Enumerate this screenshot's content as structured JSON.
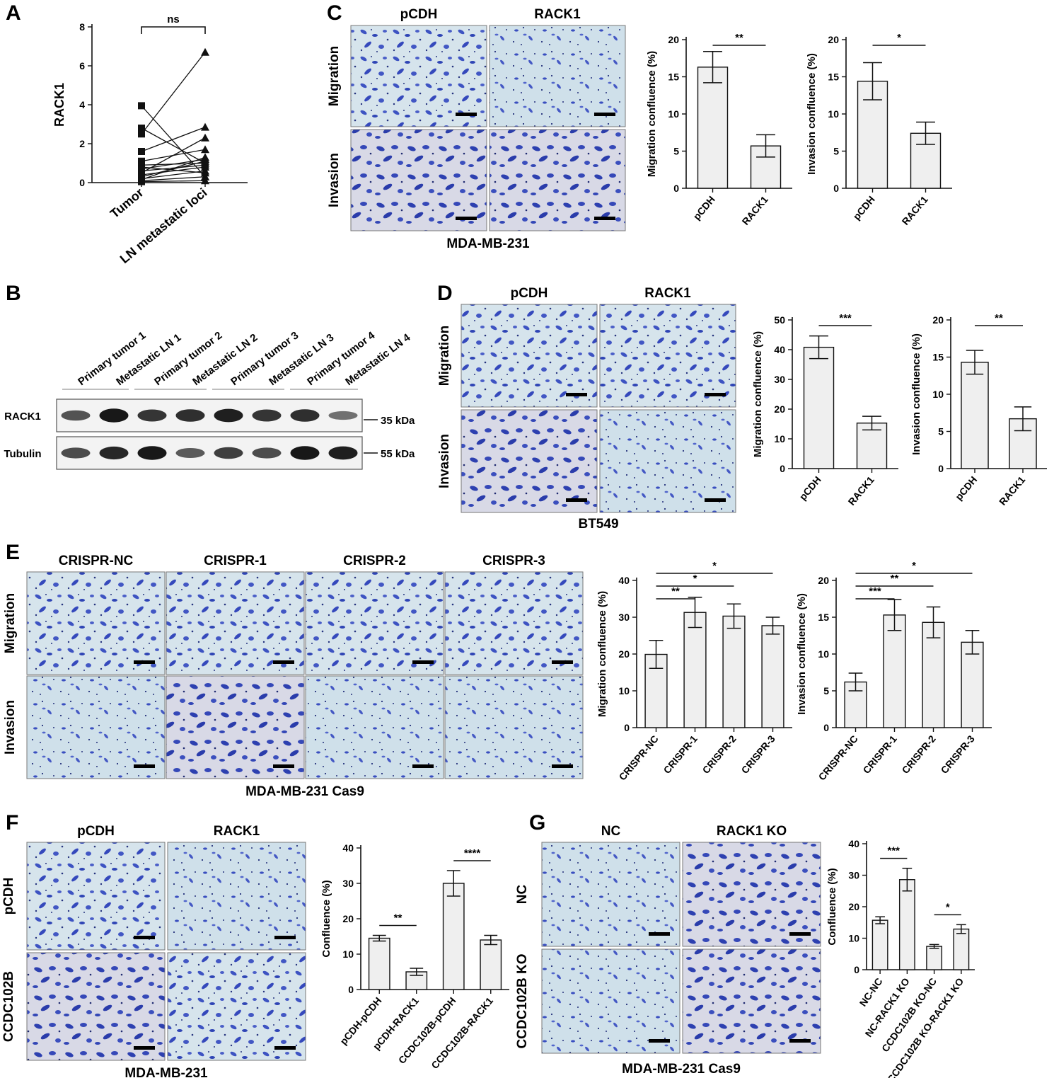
{
  "panel_letters": [
    "A",
    "B",
    "C",
    "D",
    "E",
    "F",
    "G"
  ],
  "panel_c": {
    "col_headers": [
      "pCDH",
      "RACK1"
    ],
    "row_headers": [
      "Migration",
      "Invasion"
    ],
    "caption": "MDA-MB-231"
  },
  "panel_d": {
    "col_headers": [
      "pCDH",
      "RACK1"
    ],
    "row_headers": [
      "Migration",
      "Invasion"
    ],
    "caption": "BT549"
  },
  "panel_e": {
    "col_headers": [
      "CRISPR-NC",
      "CRISPR-1",
      "CRISPR-2",
      "CRISPR-3"
    ],
    "row_headers": [
      "Migration",
      "Invasion"
    ],
    "caption": "MDA-MB-231 Cas9"
  },
  "panel_f": {
    "col_headers": [
      "pCDH",
      "RACK1"
    ],
    "row_headers": [
      "pCDH",
      "CCDC102B"
    ],
    "caption": "MDA-MB-231"
  },
  "panel_g": {
    "col_headers": [
      "NC",
      "RACK1 KO"
    ],
    "row_headers": [
      "NC",
      "CCDC102B KO"
    ],
    "caption": "MDA-MB-231 Cas9"
  },
  "western_blot": {
    "lanes": [
      "Primary tumor 1",
      "Metastatic LN 1",
      "Primary tumor 2",
      "Metastatic LN 2",
      "Primary tumor 3",
      "Metastatic LN 3",
      "Primary tumor 4",
      "Metastatic LN 4"
    ],
    "rows": [
      {
        "label": "RACK1",
        "marker": "35 kDa",
        "intensity": [
          0.55,
          0.95,
          0.75,
          0.8,
          0.9,
          0.75,
          0.8,
          0.35
        ]
      },
      {
        "label": "Tubulin",
        "marker": "55 kDa",
        "intensity": [
          0.6,
          0.85,
          0.95,
          0.5,
          0.7,
          0.6,
          0.95,
          0.9
        ]
      }
    ]
  },
  "colors": {
    "bar_fill": "#efefef",
    "stain": "#3a4fc0",
    "stain_bg": "#c9dde8"
  },
  "chart_data": [
    {
      "id": "A",
      "type": "scatter",
      "ylabel": "RACK1",
      "ylim": [
        0,
        8
      ],
      "yticks": [
        0,
        2,
        4,
        6,
        8
      ],
      "categories": [
        "Tumor",
        "LN metastatic loci"
      ],
      "pairs": [
        [
          3.95,
          0.3
        ],
        [
          2.8,
          1.0
        ],
        [
          2.5,
          6.7
        ],
        [
          1.6,
          2.85
        ],
        [
          1.1,
          1.7
        ],
        [
          0.9,
          1.0
        ],
        [
          0.8,
          0.5
        ],
        [
          0.7,
          1.2
        ],
        [
          0.6,
          0.9
        ],
        [
          0.5,
          2.3
        ],
        [
          0.4,
          0.8
        ],
        [
          0.3,
          1.1
        ],
        [
          0.2,
          0.6
        ],
        [
          0.15,
          1.3
        ],
        [
          0.1,
          0.3
        ],
        [
          0.05,
          0.1
        ]
      ],
      "sig": [
        {
          "from": 0,
          "to": 1,
          "label": "ns"
        }
      ]
    },
    {
      "id": "C1",
      "type": "bar",
      "ylabel": "Migration confluence (%)",
      "ylim": [
        0,
        20
      ],
      "yticks": [
        0,
        5,
        10,
        15,
        20
      ],
      "categories": [
        "pCDH",
        "RACK1"
      ],
      "values": [
        16.3,
        5.7
      ],
      "errors": [
        2.1,
        1.5
      ],
      "sig": [
        {
          "from": 0,
          "to": 1,
          "label": "**"
        }
      ]
    },
    {
      "id": "C2",
      "type": "bar",
      "ylabel": "Invasion confluence (%)",
      "ylim": [
        0,
        20
      ],
      "yticks": [
        0,
        5,
        10,
        15,
        20
      ],
      "categories": [
        "pCDH",
        "RACK1"
      ],
      "values": [
        14.4,
        7.4
      ],
      "errors": [
        2.5,
        1.5
      ],
      "sig": [
        {
          "from": 0,
          "to": 1,
          "label": "*"
        }
      ]
    },
    {
      "id": "D1",
      "type": "bar",
      "ylabel": "Migration confluence (%)",
      "ylim": [
        0,
        50
      ],
      "yticks": [
        0,
        10,
        20,
        30,
        40,
        50
      ],
      "categories": [
        "pCDH",
        "RACK1"
      ],
      "values": [
        40.8,
        15.3
      ],
      "errors": [
        3.8,
        2.3
      ],
      "sig": [
        {
          "from": 0,
          "to": 1,
          "label": "***"
        }
      ]
    },
    {
      "id": "D2",
      "type": "bar",
      "ylabel": "Invasion confluence (%)",
      "ylim": [
        0,
        20
      ],
      "yticks": [
        0,
        5,
        10,
        15,
        20
      ],
      "categories": [
        "pCDH",
        "RACK1"
      ],
      "values": [
        14.3,
        6.7
      ],
      "errors": [
        1.6,
        1.6
      ],
      "sig": [
        {
          "from": 0,
          "to": 1,
          "label": "**"
        }
      ]
    },
    {
      "id": "E1",
      "type": "bar",
      "ylabel": "Migration confluence (%)",
      "ylim": [
        0,
        40
      ],
      "yticks": [
        0,
        10,
        20,
        30,
        40
      ],
      "categories": [
        "CRISPR-NC",
        "CRISPR-1",
        "CRISPR-2",
        "CRISPR-3"
      ],
      "values": [
        19.9,
        31.3,
        30.3,
        27.7
      ],
      "errors": [
        3.8,
        4.1,
        3.3,
        2.3
      ],
      "sig": [
        {
          "from": 0,
          "to": 1,
          "label": "**"
        },
        {
          "from": 0,
          "to": 2,
          "label": "*"
        },
        {
          "from": 0,
          "to": 3,
          "label": "*"
        }
      ]
    },
    {
      "id": "E2",
      "type": "bar",
      "ylabel": "Invasion confluence (%)",
      "ylim": [
        0,
        20
      ],
      "yticks": [
        0,
        5,
        10,
        15,
        20
      ],
      "categories": [
        "CRISPR-NC",
        "CRISPR-1",
        "CRISPR-2",
        "CRISPR-3"
      ],
      "values": [
        6.2,
        15.3,
        14.3,
        11.6
      ],
      "errors": [
        1.2,
        2.1,
        2.1,
        1.6
      ],
      "sig": [
        {
          "from": 0,
          "to": 1,
          "label": "***"
        },
        {
          "from": 0,
          "to": 2,
          "label": "**"
        },
        {
          "from": 0,
          "to": 3,
          "label": "*"
        }
      ]
    },
    {
      "id": "F",
      "type": "bar",
      "ylabel": "Confluence (%)",
      "ylim": [
        0,
        40
      ],
      "yticks": [
        0,
        10,
        20,
        30,
        40
      ],
      "categories": [
        "pCDH-pCDH",
        "pCDH-RACK1",
        "CCDC102B-pCDH",
        "CCDC102B-RACK1"
      ],
      "values": [
        14.5,
        5.0,
        30.0,
        14.0
      ],
      "errors": [
        0.8,
        1.0,
        3.6,
        1.3
      ],
      "sig": [
        {
          "from": 0,
          "to": 1,
          "label": "**"
        },
        {
          "from": 2,
          "to": 3,
          "label": "****"
        }
      ]
    },
    {
      "id": "G",
      "type": "bar",
      "ylabel": "Confluence (%)",
      "ylim": [
        0,
        40
      ],
      "yticks": [
        0,
        10,
        20,
        30,
        40
      ],
      "categories": [
        "NC-NC",
        "NC-RACK1 KO",
        "CCDC102B KO-NC",
        "CCDC102B KO-RACK1 KO"
      ],
      "values": [
        15.7,
        28.6,
        7.4,
        12.9
      ],
      "errors": [
        1.1,
        3.6,
        0.6,
        1.4
      ],
      "sig": [
        {
          "from": 0,
          "to": 1,
          "label": "***"
        },
        {
          "from": 2,
          "to": 3,
          "label": "*"
        }
      ]
    }
  ]
}
